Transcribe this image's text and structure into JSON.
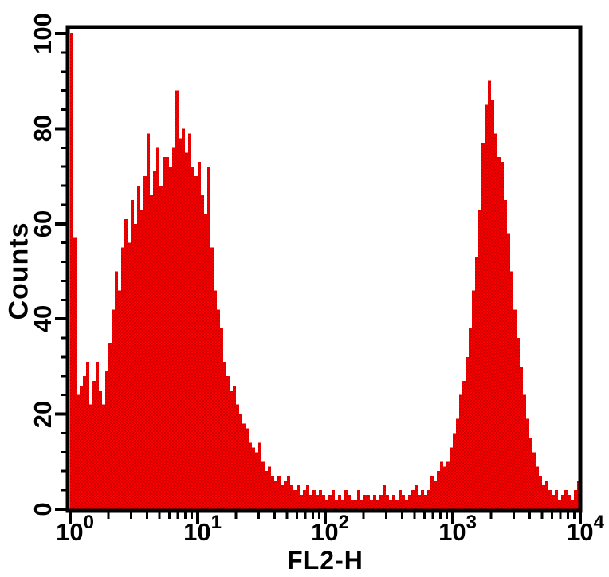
{
  "figure": {
    "background_color": "#ffffff",
    "axis_color": "#000000"
  },
  "chart_data": {
    "type": "bar",
    "subtype": "flow-cytometry-histogram",
    "title": "",
    "xlabel": "FL2-H",
    "ylabel": "Counts",
    "x_scale": "log10",
    "x_range_decades": [
      0,
      4
    ],
    "ylim": [
      0,
      100
    ],
    "y_major_ticks": [
      0,
      20,
      40,
      60,
      80,
      100
    ],
    "y_minor_step": 4,
    "x_tick_labels": [
      {
        "base": "10",
        "exp": "0"
      },
      {
        "base": "10",
        "exp": "1"
      },
      {
        "base": "10",
        "exp": "2"
      },
      {
        "base": "10",
        "exp": "3"
      },
      {
        "base": "10",
        "exp": "4"
      }
    ],
    "x_minor_mantissas": [
      2,
      3,
      4,
      5,
      6,
      7,
      8,
      9
    ],
    "legend": null,
    "grid": false,
    "bar_fill_primary": "#fa0000",
    "bar_fill_secondary": "#d20000",
    "bins_per_decade": 40,
    "counts": [
      100,
      57,
      24,
      26,
      28,
      31,
      22,
      27,
      31,
      25,
      22,
      29,
      35,
      42,
      50,
      46,
      55,
      61,
      56,
      65,
      60,
      68,
      63,
      70,
      79,
      66,
      71,
      76,
      68,
      74,
      74,
      72,
      76,
      88,
      78,
      80,
      75,
      79,
      72,
      70,
      73,
      66,
      62,
      72,
      55,
      46,
      42,
      38,
      31,
      28,
      25,
      26,
      22,
      20,
      18,
      17,
      14,
      13,
      12,
      14,
      10,
      8,
      9,
      7,
      6,
      7,
      5,
      6,
      7,
      5,
      4,
      5,
      3,
      4,
      5,
      3,
      4,
      3,
      4,
      3,
      2,
      3,
      4,
      2,
      3,
      2,
      4,
      3,
      2,
      2,
      4,
      2,
      3,
      3,
      2,
      3,
      2,
      3,
      5,
      3,
      2,
      3,
      2,
      4,
      3,
      2,
      3,
      4,
      5,
      3,
      4,
      3,
      4,
      7,
      6,
      8,
      10,
      9,
      10,
      13,
      16,
      19,
      24,
      27,
      32,
      38,
      46,
      53,
      63,
      77,
      85,
      90,
      86,
      79,
      74,
      73,
      65,
      58,
      50,
      42,
      36,
      30,
      24,
      19,
      15,
      12,
      9,
      7,
      5,
      6,
      4,
      3,
      4,
      2,
      3,
      4,
      3,
      2,
      4,
      6
    ]
  }
}
